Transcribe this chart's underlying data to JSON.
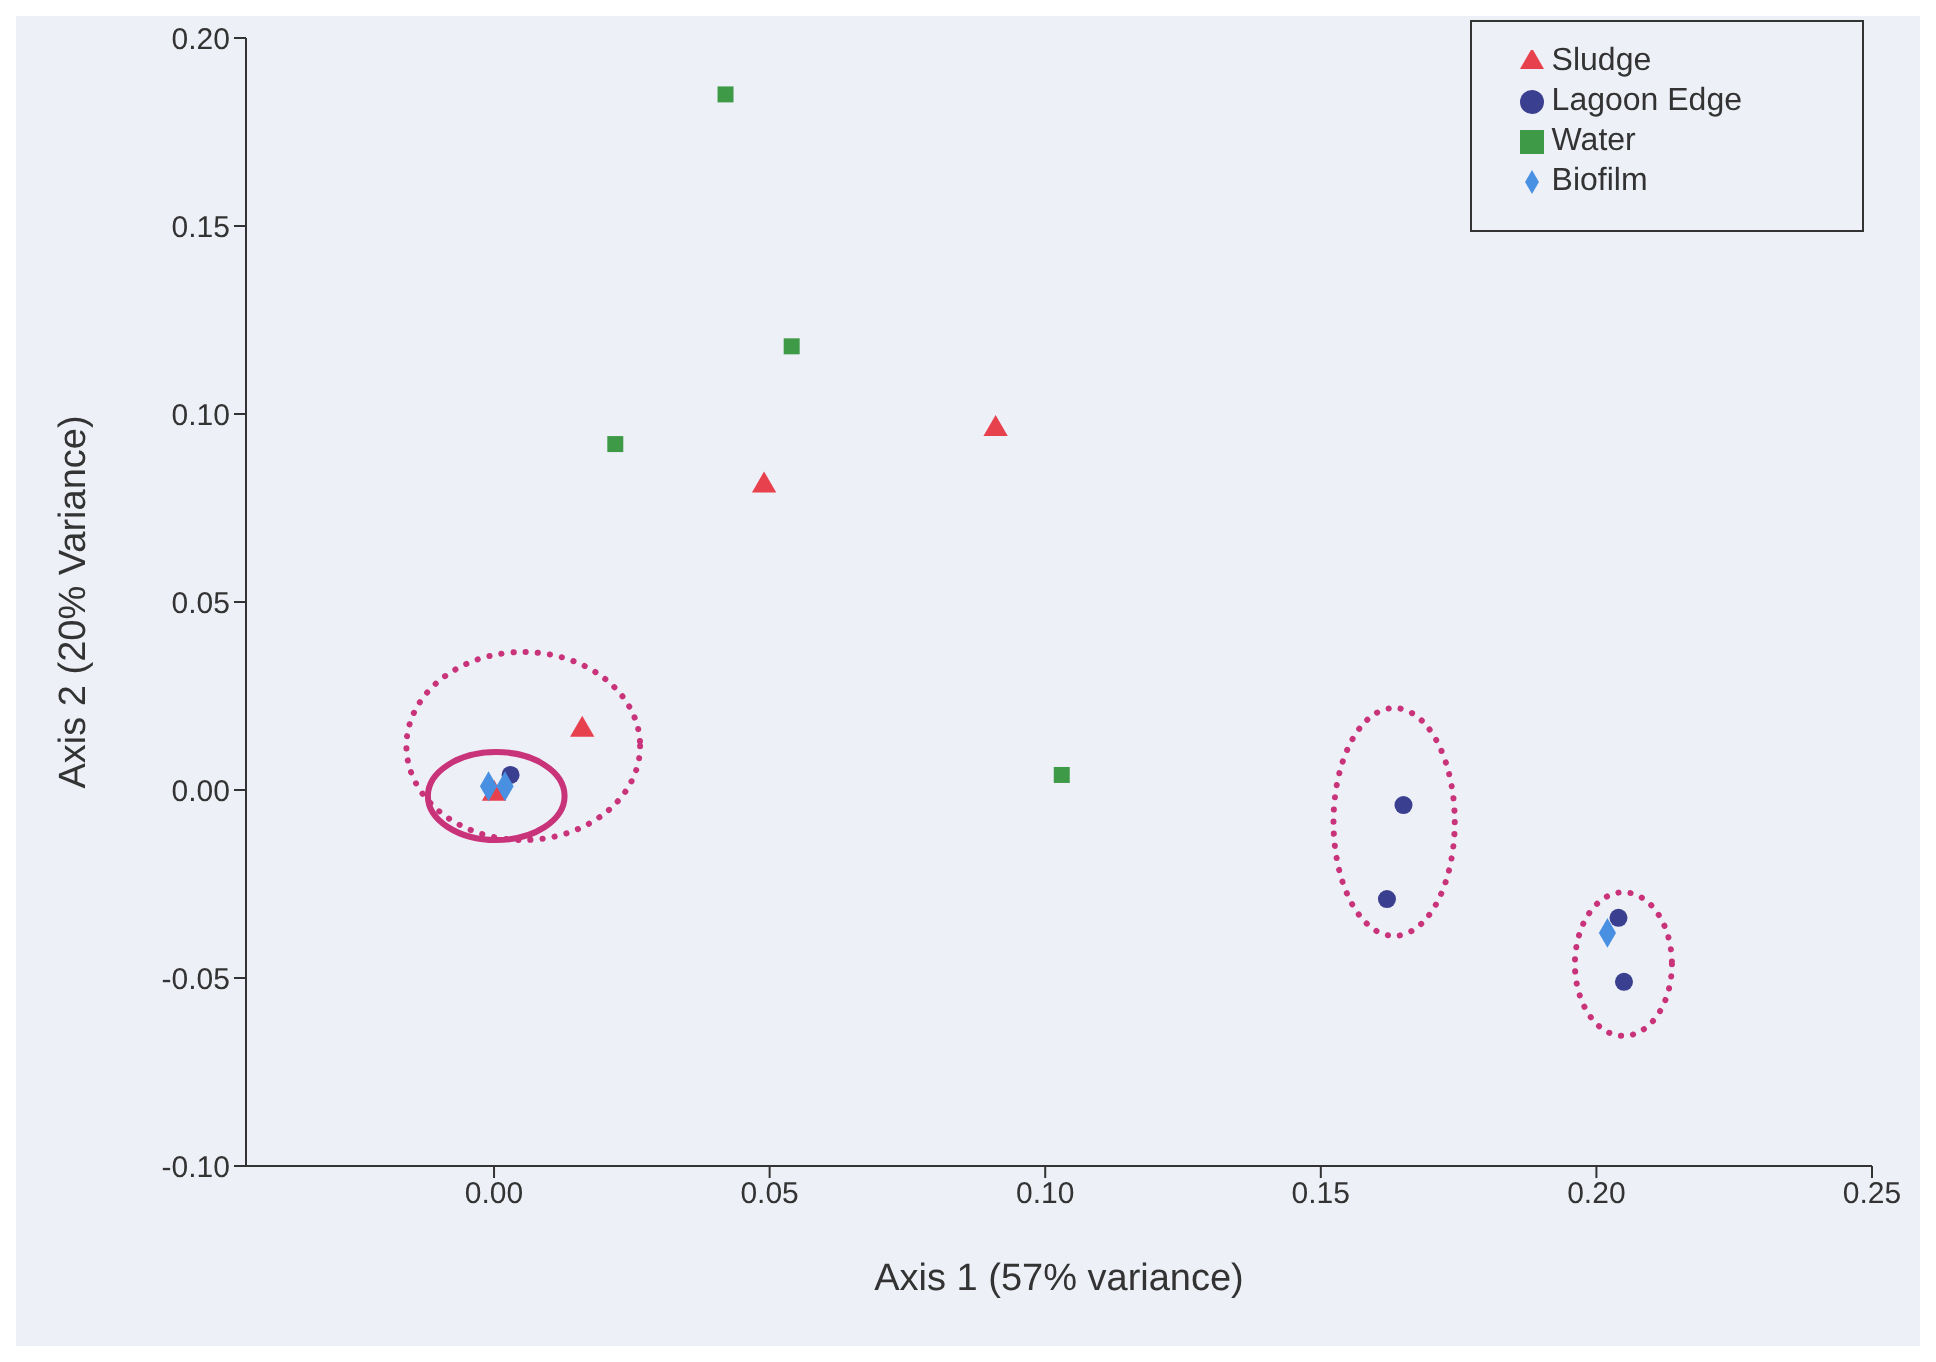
{
  "chart_data": {
    "type": "scatter",
    "xlabel": "Axis 1 (57% variance)",
    "ylabel": "Axis 2 (20% Variance)",
    "xlim": [
      -0.045,
      0.25
    ],
    "xticks": [
      {
        "value": 0,
        "label": "0.00"
      },
      {
        "value": 0.05,
        "label": "0.05"
      },
      {
        "value": 0.1,
        "label": "0.10"
      },
      {
        "value": 0.15,
        "label": "0.15"
      },
      {
        "value": 0.2,
        "label": "0.20"
      },
      {
        "value": 0.25,
        "label": "0.25"
      }
    ],
    "ylim": [
      -0.1,
      0.2
    ],
    "yticks": [
      {
        "value": -0.1,
        "label": "-0.10"
      },
      {
        "value": -0.05,
        "label": "-0.05"
      },
      {
        "value": 0,
        "label": "0.00"
      },
      {
        "value": 0.05,
        "label": "0.05"
      },
      {
        "value": 0.1,
        "label": "0.10"
      },
      {
        "value": 0.15,
        "label": "0.15"
      },
      {
        "value": 0.2,
        "label": "0.20"
      }
    ],
    "grid": false,
    "legend": "top right",
    "series": [
      {
        "name": "Sludge",
        "color": "#e8414e",
        "marker": "triangle",
        "x": [
          0.049,
          0.091,
          0.016,
          0.0
        ],
        "values": [
          0.081,
          0.096,
          0.016,
          -0.001
        ]
      },
      {
        "name": "Lagoon Edge",
        "color": "#3b3f8f",
        "marker": "circle",
        "x": [
          0.003,
          0.165,
          0.162,
          0.204,
          0.205
        ],
        "values": [
          0.004,
          -0.004,
          -0.029,
          -0.034,
          -0.051
        ]
      },
      {
        "name": "Water",
        "color": "#3f9a48",
        "marker": "square",
        "x": [
          0.042,
          0.054,
          0.022,
          0.103
        ],
        "values": [
          0.185,
          0.118,
          0.092,
          0.004
        ]
      },
      {
        "name": "Biofilm",
        "color": "#4a90e2",
        "marker": "diamond",
        "x": [
          -0.001,
          0.002,
          0.202
        ],
        "values": [
          0.001,
          0.001,
          -0.038
        ]
      }
    ]
  }
}
